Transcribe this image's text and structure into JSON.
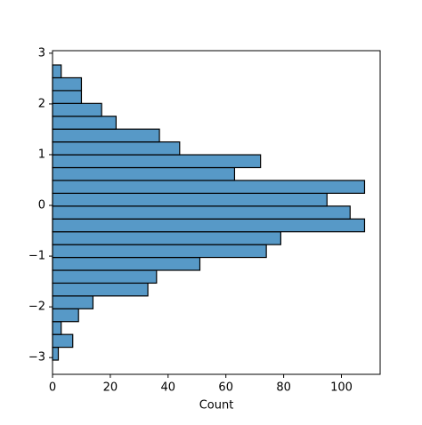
{
  "chart_data": {
    "type": "histogram",
    "orientation": "horizontal",
    "xlabel": "Count",
    "bins": [
      -3.05,
      -2.797,
      -2.544,
      -2.291,
      -2.038,
      -1.785,
      -1.532,
      -1.279,
      -1.026,
      -0.773,
      -0.52,
      -0.267,
      -0.014,
      0.239,
      0.492,
      0.745,
      0.998,
      1.251,
      1.504,
      1.757,
      2.01,
      2.263,
      2.516,
      2.769
    ],
    "values": [
      2,
      7,
      3,
      9,
      14,
      33,
      36,
      51,
      74,
      79,
      108,
      103,
      95,
      108,
      63,
      72,
      44,
      37,
      22,
      17,
      10,
      10,
      3
    ],
    "color": "#5799c7",
    "xlim": [
      0,
      113.4
    ],
    "xticks": [
      0,
      20,
      40,
      60,
      80,
      100
    ],
    "ylim": [
      -3.33,
      3.05
    ],
    "yticks": [
      {
        "value": -3,
        "label": "−3"
      },
      {
        "value": -2,
        "label": "−2"
      },
      {
        "value": -1,
        "label": "−1"
      },
      0,
      1,
      2,
      3
    ]
  }
}
